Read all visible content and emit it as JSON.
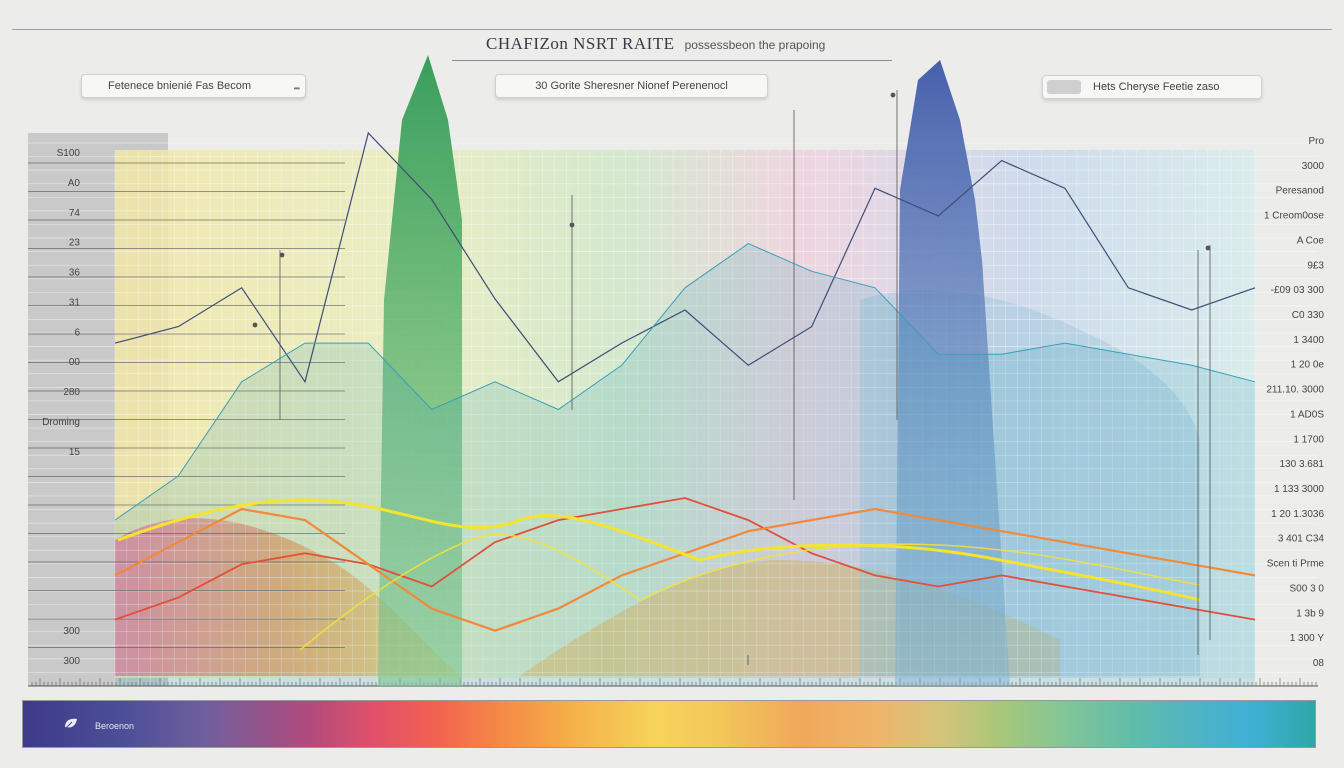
{
  "header": {
    "title": "CHAFIZon NSRT RAITE",
    "subtitle": "possessbeon the prapoing"
  },
  "controls": {
    "left_field": "Fetenece bnienié Fas Becom",
    "center_field": "30 Gorite Sheresner Nionef Perenenocl",
    "right_field": "Hets Cheryse Feetie zaso"
  },
  "legend": {
    "label": "Beroenon"
  },
  "colors": {
    "green_band": "#3f9f5e",
    "blue_band": "#4b68b0",
    "yellow_curve": "#f5e332",
    "orange_curve": "#f08a3a",
    "red_curve": "#e0503a",
    "dark_line": "#3d4d78",
    "teal_line": "#3a9fb8"
  },
  "chart_data": {
    "type": "area",
    "title": "CHAFIZon NSRT RAITE",
    "left_tick_labels": [
      "S100",
      "A0",
      "74",
      "23",
      "36",
      "31",
      "6",
      "00",
      "280",
      "Droming",
      "15",
      "",
      "",
      "",
      "",
      "",
      "300",
      "300"
    ],
    "right_tick_labels": [
      "Pro",
      "3000",
      "Peresanod",
      "1 Creom0ose",
      "A  Coe",
      "9£3",
      "-£09 03 300",
      "C0 330",
      "1 3400",
      "1 20 0e",
      "211.10. 3000",
      "1 AD0S",
      "1 1700",
      "130 3.681",
      "1 133 3000",
      "1 20 1.3036",
      "3 401 C34",
      "Scen ti Prme",
      "S00 3 0",
      "1 3b 9",
      "1 300 Y",
      "08"
    ],
    "grid": true,
    "series": [
      {
        "values": [
          0.62,
          0.65,
          0.72,
          0.55,
          1.0,
          0.88,
          0.7,
          0.55,
          0.62,
          0.68,
          0.58,
          0.65,
          0.9,
          0.85,
          0.95,
          0.9,
          0.72,
          0.68,
          0.72
        ]
      },
      {
        "values": [
          0.12,
          0.16,
          0.22,
          0.24,
          0.22,
          0.18,
          0.26,
          0.3,
          0.32,
          0.34,
          0.3,
          0.24,
          0.2,
          0.18,
          0.2,
          0.18,
          0.16,
          0.14,
          0.12
        ]
      },
      {
        "values": [
          0.2,
          0.26,
          0.32,
          0.3,
          0.22,
          0.14,
          0.1,
          0.14,
          0.2,
          0.24,
          0.28,
          0.3,
          0.32,
          0.3,
          0.28,
          0.26,
          0.24,
          0.22,
          0.2
        ]
      },
      {
        "values": [
          0.3,
          0.38,
          0.55,
          0.62,
          0.62,
          0.5,
          0.55,
          0.5,
          0.58,
          0.72,
          0.8,
          0.75,
          0.72,
          0.6,
          0.6,
          0.62,
          0.6,
          0.58,
          0.55
        ]
      }
    ]
  }
}
